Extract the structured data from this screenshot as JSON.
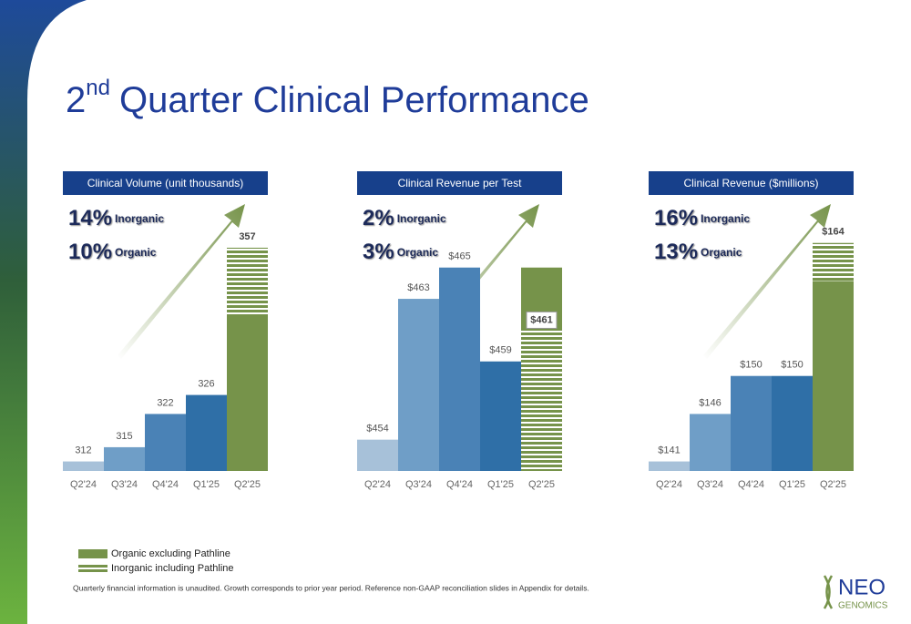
{
  "title": {
    "number": "2",
    "sup": "nd",
    "rest": "Quarter Clinical Performance"
  },
  "legend": [
    "Organic excluding Pathline",
    "Inorganic including Pathline"
  ],
  "footnote": "Quarterly financial information is unaudited. Growth corresponds to prior year period. Reference non-GAAP reconciliation slides in Appendix for details.",
  "logo": {
    "top": "NEO",
    "bottom": "GENOMICS"
  },
  "chart_data": [
    {
      "type": "bar",
      "title": "Clinical Volume (unit thousands)",
      "growth": [
        {
          "pct": "14%",
          "label": "Inorganic"
        },
        {
          "pct": "10%",
          "label": "Organic"
        }
      ],
      "categories": [
        "Q2'24",
        "Q3'24",
        "Q4'24",
        "Q1'25",
        "Q2'25"
      ],
      "values": [
        312,
        315,
        322,
        326,
        357
      ],
      "organic_values": [
        null,
        null,
        null,
        null,
        343
      ],
      "colors": [
        "#a7c1d9",
        "#6f9ec7",
        "#4a82b6",
        "#2f6fa7",
        "#76934a"
      ],
      "ylim": [
        310,
        366
      ]
    },
    {
      "type": "bar",
      "title": "Clinical Revenue per Test",
      "growth": [
        {
          "pct": "2%",
          "label": "Inorganic"
        },
        {
          "pct": "3%",
          "label": "Organic"
        }
      ],
      "categories": [
        "Q2'24",
        "Q3'24",
        "Q4'24",
        "Q1'25",
        "Q2'25"
      ],
      "values": [
        454,
        463,
        465,
        459,
        461
      ],
      "value_labels": [
        "$454",
        "$463",
        "$465",
        "$459",
        "$461"
      ],
      "organic_values": [
        null,
        null,
        null,
        null,
        465
      ],
      "colors": [
        "#a7c1d9",
        "#6f9ec7",
        "#4a82b6",
        "#2f6fa7",
        "#76934a"
      ],
      "ylim": [
        452,
        469
      ]
    },
    {
      "type": "bar",
      "title": "Clinical Revenue ($millions)",
      "growth": [
        {
          "pct": "16%",
          "label": "Inorganic"
        },
        {
          "pct": "13%",
          "label": "Organic"
        }
      ],
      "categories": [
        "Q2'24",
        "Q3'24",
        "Q4'24",
        "Q1'25",
        "Q2'25"
      ],
      "values": [
        141,
        146,
        150,
        150,
        164
      ],
      "value_labels": [
        "$141",
        "$146",
        "$150",
        "$150",
        "$164"
      ],
      "organic_values": [
        null,
        null,
        null,
        null,
        160
      ],
      "colors": [
        "#a7c1d9",
        "#6f9ec7",
        "#4a82b6",
        "#2f6fa7",
        "#76934a"
      ],
      "ylim": [
        140,
        168
      ]
    }
  ]
}
